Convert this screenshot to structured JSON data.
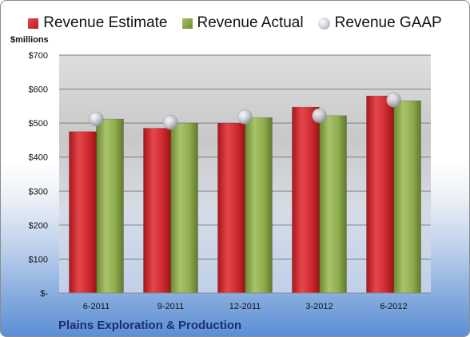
{
  "chart_data": {
    "type": "bar",
    "categories": [
      "6-2011",
      "9-2011",
      "12-2011",
      "3-2012",
      "6-2012"
    ],
    "series": [
      {
        "name": "Revenue Estimate",
        "kind": "bar",
        "color": "#c8282c",
        "values": [
          475,
          485,
          500,
          547,
          580
        ]
      },
      {
        "name": "Revenue Actual",
        "kind": "bar",
        "color": "#86a443",
        "values": [
          512,
          500,
          516,
          522,
          566
        ]
      },
      {
        "name": "Revenue GAAP",
        "kind": "marker",
        "color": "#b8bcc6",
        "values": [
          512,
          502,
          518,
          522,
          568
        ]
      }
    ],
    "ylabel": "$millions",
    "ylim": [
      0,
      700
    ],
    "yticks": [
      0,
      100,
      200,
      300,
      400,
      500,
      600,
      700
    ],
    "ytick_labels": [
      "$-",
      "$100",
      "$200",
      "$300",
      "$400",
      "$500",
      "$600",
      "$700"
    ],
    "grid": true,
    "legend": "top",
    "caption": "Plains Exploration & Production"
  }
}
